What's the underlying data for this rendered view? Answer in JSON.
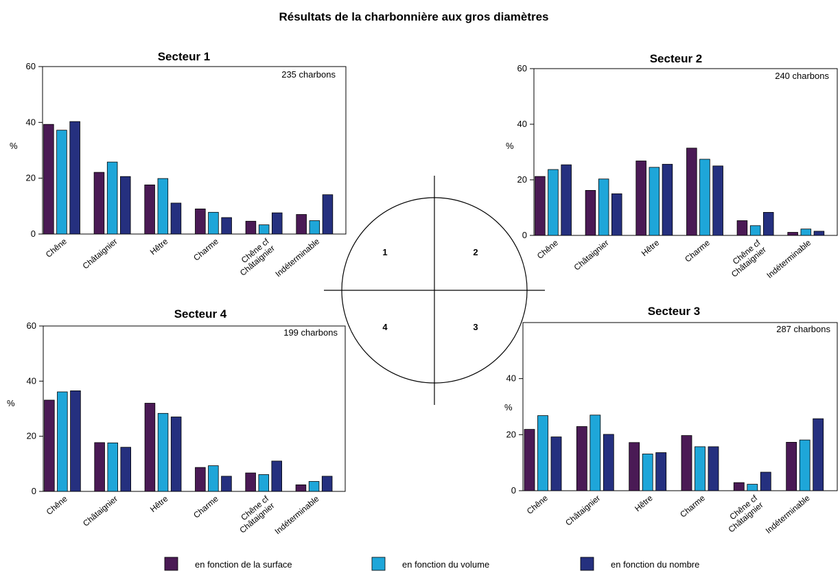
{
  "title": "Résultats de la charbonnière aux gros diamètres",
  "colors": {
    "surface": "#4a1a55",
    "volume": "#1ea6d9",
    "nombre": "#25307f"
  },
  "legend": [
    {
      "key": "surface",
      "label": "en fonction de la surface"
    },
    {
      "key": "volume",
      "label": "en fonction du volume"
    },
    {
      "key": "nombre",
      "label": "en fonction du nombre"
    }
  ],
  "diagram": {
    "quadrant_labels": [
      "1",
      "2",
      "4",
      "3"
    ]
  },
  "chart_data": [
    {
      "type": "bar",
      "title": "Secteur 1",
      "count_label": "235 charbons",
      "ylabel": "%",
      "ylim": [
        0,
        60
      ],
      "yticks": [
        0,
        20,
        40,
        60
      ],
      "categories": [
        "Chêne",
        "Châtaignier",
        "Hêtre",
        "Charme",
        "Chêne cf Châtaignier",
        "Indéterminable"
      ],
      "series": [
        {
          "name": "en fonction de la surface",
          "values": [
            39.3,
            22.1,
            17.6,
            9.0,
            4.6,
            7.0
          ]
        },
        {
          "name": "en fonction du volume",
          "values": [
            37.2,
            25.8,
            19.9,
            7.8,
            3.3,
            4.8
          ]
        },
        {
          "name": "en fonction du nombre",
          "values": [
            40.3,
            20.6,
            11.1,
            5.9,
            7.6,
            14.1
          ]
        }
      ]
    },
    {
      "type": "bar",
      "title": "Secteur 2",
      "count_label": "240 charbons",
      "ylabel": "%",
      "ylim": [
        0,
        60
      ],
      "yticks": [
        0,
        20,
        40,
        60
      ],
      "categories": [
        "Chêne",
        "Châtaignier",
        "Hêtre",
        "Charme",
        "Chêne cf Châtaignier",
        "Indéterminable"
      ],
      "series": [
        {
          "name": "en fonction de la surface",
          "values": [
            21.2,
            16.2,
            26.8,
            31.4,
            5.3,
            1.1
          ]
        },
        {
          "name": "en fonction du volume",
          "values": [
            23.7,
            20.3,
            24.5,
            27.4,
            3.5,
            2.3
          ]
        },
        {
          "name": "en fonction du nombre",
          "values": [
            25.4,
            15.0,
            25.6,
            25.0,
            8.3,
            1.5
          ]
        }
      ]
    },
    {
      "type": "bar",
      "title": "Secteur 4",
      "count_label": "199 charbons",
      "ylabel": "%",
      "ylim": [
        0,
        60
      ],
      "yticks": [
        0,
        20,
        40,
        60
      ],
      "categories": [
        "Chêne",
        "Châtaignier",
        "Hêtre",
        "Charme",
        "Chêne cf Châtaignier",
        "Indéterminable"
      ],
      "series": [
        {
          "name": "en fonction de la surface",
          "values": [
            33.1,
            17.7,
            32.0,
            8.7,
            6.7,
            2.4
          ]
        },
        {
          "name": "en fonction du volume",
          "values": [
            36.1,
            17.6,
            28.3,
            9.3,
            6.1,
            3.6
          ]
        },
        {
          "name": "en fonction du nombre",
          "values": [
            36.5,
            16.0,
            27.0,
            5.5,
            11.0,
            5.5
          ]
        }
      ]
    },
    {
      "type": "bar",
      "title": "Secteur 3",
      "count_label": "287 charbons",
      "ylabel": "%",
      "ylim": [
        0,
        60
      ],
      "yticks": [
        0,
        20,
        40
      ],
      "categories": [
        "Chêne",
        "Châtaignier",
        "Hêtre",
        "Charme",
        "Chêne cf Châtaignier",
        "Indéterminable"
      ],
      "series": [
        {
          "name": "en fonction de la surface",
          "values": [
            21.9,
            22.9,
            17.2,
            19.7,
            2.9,
            17.3
          ]
        },
        {
          "name": "en fonction du volume",
          "values": [
            26.8,
            27.0,
            13.1,
            15.7,
            2.3,
            18.1
          ]
        },
        {
          "name": "en fonction du nombre",
          "values": [
            19.2,
            20.1,
            13.6,
            15.7,
            6.6,
            25.7
          ]
        }
      ]
    }
  ]
}
